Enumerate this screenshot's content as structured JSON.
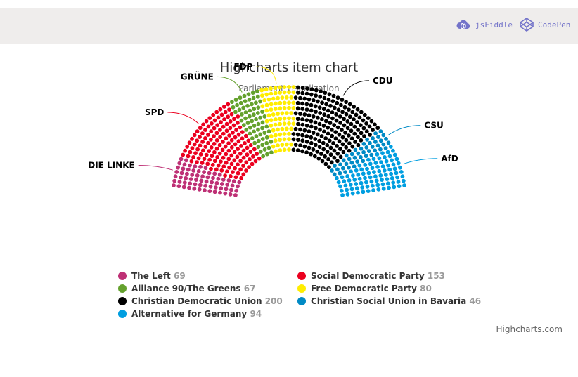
{
  "toolbar": {
    "jsfiddle_label": "jsFiddle",
    "codepen_label": "CodePen",
    "jsfiddle_icon": "cloud-icon",
    "codepen_icon": "codepen-cube-icon",
    "link_color": "#7373c9"
  },
  "chart_data": {
    "type": "item",
    "title": "Highcharts item chart",
    "subtitle": "Parliament visualization",
    "layout": "semicircle parliament",
    "legend_placement": "bottom",
    "series": [
      {
        "name": "The Left",
        "label": "DIE LINKE",
        "value": 69,
        "color": "#BE3075"
      },
      {
        "name": "Social Democratic Party",
        "label": "SPD",
        "value": 153,
        "color": "#EB001F"
      },
      {
        "name": "Alliance 90/The Greens",
        "label": "GRÜNE",
        "value": 67,
        "color": "#64A12D"
      },
      {
        "name": "Free Democratic Party",
        "label": "FDP",
        "value": 80,
        "color": "#FFED00"
      },
      {
        "name": "Christian Democratic Union",
        "label": "CDU",
        "value": 200,
        "color": "#000000"
      },
      {
        "name": "Christian Social Union in Bavaria",
        "label": "CSU",
        "value": 46,
        "color": "#008AC5"
      },
      {
        "name": "Alternative for Germany",
        "label": "AfD",
        "value": 94,
        "color": "#009EE0"
      }
    ],
    "credits": "Highcharts.com"
  }
}
